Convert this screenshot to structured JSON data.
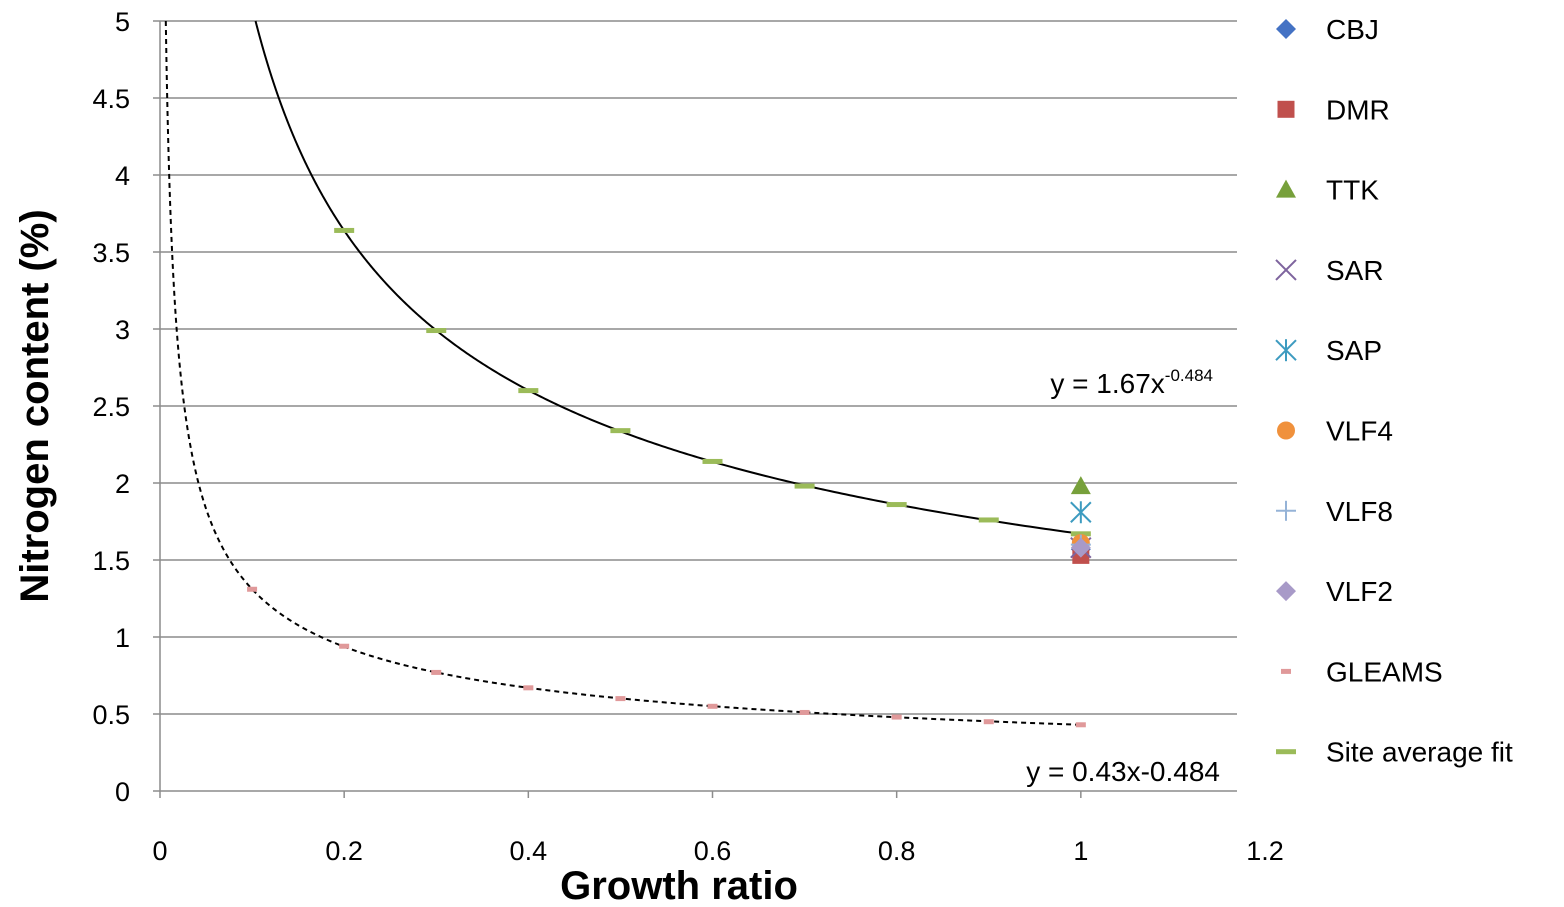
{
  "chart_data": {
    "type": "scatter",
    "xlabel": "Growth ratio",
    "ylabel": "Nitrogen content (%)",
    "xlim": [
      0,
      1.2
    ],
    "ylim": [
      0,
      5
    ],
    "xticks": [
      "0",
      "0.2",
      "0.4",
      "0.6",
      "0.8",
      "1",
      "1.2"
    ],
    "yticks": [
      "0",
      "0.5",
      "1",
      "1.5",
      "2",
      "2.5",
      "3",
      "3.5",
      "4",
      "4.5",
      "5"
    ],
    "grid": "horizontal",
    "legend_position": "right",
    "series": [
      {
        "name": "CBJ",
        "marker": "diamond",
        "color": "#4472C4",
        "points": [
          [
            1.0,
            1.57
          ]
        ]
      },
      {
        "name": "DMR",
        "marker": "square",
        "color": "#C0504D",
        "points": [
          [
            1.0,
            1.53
          ]
        ]
      },
      {
        "name": "TTK",
        "marker": "triangle",
        "color": "#77A03B",
        "points": [
          [
            1.0,
            1.98
          ]
        ]
      },
      {
        "name": "SAR",
        "marker": "x",
        "color": "#7E649E",
        "points": [
          [
            1.0,
            1.58
          ]
        ]
      },
      {
        "name": "SAP",
        "marker": "star",
        "color": "#3D9BC0",
        "points": [
          [
            1.0,
            1.81
          ]
        ]
      },
      {
        "name": "VLF4",
        "marker": "circle",
        "color": "#F0913C",
        "points": [
          [
            1.0,
            1.61
          ]
        ]
      },
      {
        "name": "VLF8",
        "marker": "plus",
        "color": "#95B3D7",
        "points": [
          [
            1.0,
            1.6
          ]
        ]
      },
      {
        "name": "VLF2",
        "marker": "diamond",
        "color": "#A89AC8",
        "points": [
          [
            1.0,
            1.58
          ]
        ]
      },
      {
        "name": "GLEAMS",
        "marker": "dash",
        "color": "#E0999A",
        "points": [
          [
            0.1,
            1.31
          ],
          [
            0.2,
            0.94
          ],
          [
            0.3,
            0.77
          ],
          [
            0.4,
            0.67
          ],
          [
            0.5,
            0.6
          ],
          [
            0.6,
            0.55
          ],
          [
            0.7,
            0.51
          ],
          [
            0.8,
            0.48
          ],
          [
            0.9,
            0.45
          ],
          [
            1.0,
            0.43
          ]
        ]
      },
      {
        "name": "Site average fit",
        "marker": "dash",
        "color": "#9BBB59",
        "points": [
          [
            0.2,
            3.64
          ],
          [
            0.3,
            2.99
          ],
          [
            0.4,
            2.6
          ],
          [
            0.5,
            2.34
          ],
          [
            0.6,
            2.14
          ],
          [
            0.7,
            1.98
          ],
          [
            0.8,
            1.86
          ],
          [
            0.9,
            1.76
          ],
          [
            1.0,
            1.67
          ]
        ]
      }
    ],
    "trendlines": [
      {
        "style": "solid",
        "a": 1.67,
        "b": -0.484,
        "color": "#000000"
      },
      {
        "style": "dashed",
        "a": 0.43,
        "b": -0.484,
        "color": "#000000"
      }
    ],
    "annotations": {
      "upper_equation_base": "y = 1.67x",
      "upper_equation_exp": "-0.484",
      "lower_equation": "y = 0.43x-0.484"
    }
  }
}
